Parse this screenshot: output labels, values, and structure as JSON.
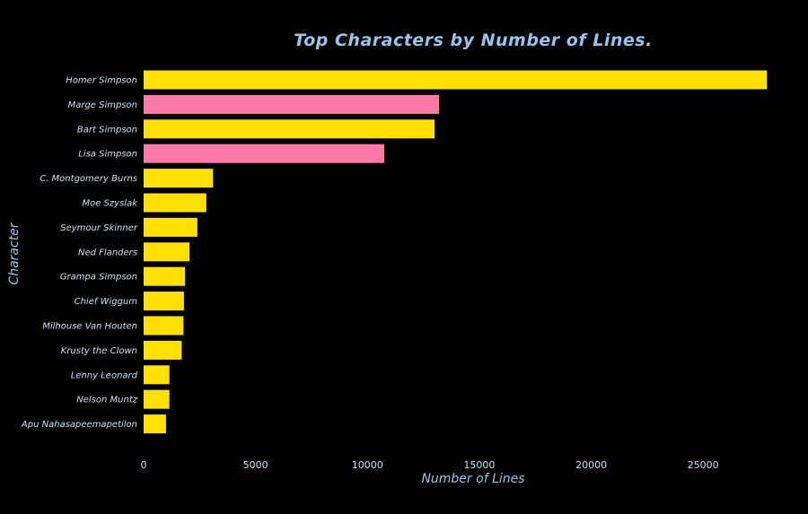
{
  "chart_data": {
    "type": "bar",
    "orientation": "horizontal",
    "title": "Top Characters by Number of Lines.",
    "xlabel": "Number of Lines",
    "ylabel": "Character",
    "xlim": [
      0,
      28000
    ],
    "xticks": [
      0,
      5000,
      10000,
      15000,
      20000,
      25000
    ],
    "grid": false,
    "background": "#000000",
    "categories": [
      "Homer Simpson",
      "Marge Simpson",
      "Bart Simpson",
      "Lisa Simpson",
      "C. Montgomery Burns",
      "Moe Szyslak",
      "Seymour Skinner",
      "Ned Flanders",
      "Grampa Simpson",
      "Chief Wiggum",
      "Milhouse Van Houten",
      "Krusty the Clown",
      "Lenny Leonard",
      "Nelson Muntz",
      "Apu Nahasapeemapetilon"
    ],
    "values": [
      27850,
      13200,
      13000,
      10750,
      3100,
      2800,
      2400,
      2050,
      1850,
      1800,
      1780,
      1700,
      1150,
      1150,
      1000
    ],
    "bar_colors": [
      "#ffe000",
      "#ff79a8",
      "#ffe000",
      "#ff79a8",
      "#ffe000",
      "#ffe000",
      "#ffe000",
      "#ffe000",
      "#ffe000",
      "#ffe000",
      "#ffe000",
      "#ffe000",
      "#ffe000",
      "#ffe000",
      "#ffe000"
    ],
    "text_color": "#8fc8ee"
  }
}
